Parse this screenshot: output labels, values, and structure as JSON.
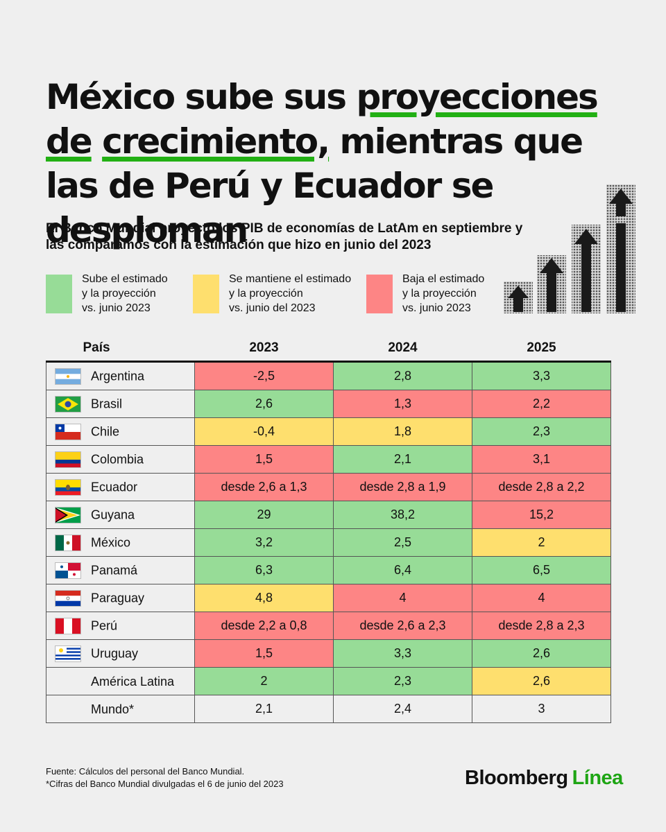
{
  "title": {
    "part1": "México sube sus ",
    "highlight1": "proyecciones de",
    "part2": " ",
    "highlight2": "crecimiento,",
    "part3": " mientras que las de Perú y Ecuador se desploman"
  },
  "subtitle": "El Banco Mundial proyectó los PIB de economías de LatAm en septiembre y las comparamos con la estimación que hizo en junio del 2023",
  "legend": [
    {
      "key": "up",
      "text": "Sube el estimado\ny la proyección\nvs. junio 2023",
      "color": "#97dc97"
    },
    {
      "key": "same",
      "text": "Se mantiene el estimado\ny la proyección\nvs. junio del 2023",
      "color": "#fedf6e"
    },
    {
      "key": "down",
      "text": "Baja el estimado\ny la proyección\nvs. junio 2023",
      "color": "#fd8585"
    }
  ],
  "chart_data": {
    "type": "table",
    "columns": [
      "País",
      "2023",
      "2024",
      "2025"
    ],
    "rows": [
      {
        "country": "Argentina",
        "flag": "argentina-flag",
        "values": [
          "-2,5",
          "2,8",
          "3,3"
        ],
        "status": [
          "down",
          "up",
          "up"
        ]
      },
      {
        "country": "Brasil",
        "flag": "brazil-flag",
        "values": [
          "2,6",
          "1,3",
          "2,2"
        ],
        "status": [
          "up",
          "down",
          "down"
        ]
      },
      {
        "country": "Chile",
        "flag": "chile-flag",
        "values": [
          "-0,4",
          "1,8",
          "2,3"
        ],
        "status": [
          "same",
          "same",
          "up"
        ]
      },
      {
        "country": "Colombia",
        "flag": "colombia-flag",
        "values": [
          "1,5",
          "2,1",
          "3,1"
        ],
        "status": [
          "down",
          "up",
          "down"
        ]
      },
      {
        "country": "Ecuador",
        "flag": "ecuador-flag",
        "values": [
          "desde 2,6 a 1,3",
          "desde 2,8 a 1,9",
          "desde 2,8 a 2,2"
        ],
        "status": [
          "down",
          "down",
          "down"
        ]
      },
      {
        "country": "Guyana",
        "flag": "guyana-flag",
        "values": [
          "29",
          "38,2",
          "15,2"
        ],
        "status": [
          "up",
          "up",
          "down"
        ]
      },
      {
        "country": "México",
        "flag": "mexico-flag",
        "values": [
          "3,2",
          "2,5",
          "2"
        ],
        "status": [
          "up",
          "up",
          "same"
        ]
      },
      {
        "country": "Panamá",
        "flag": "panama-flag",
        "values": [
          "6,3",
          "6,4",
          "6,5"
        ],
        "status": [
          "up",
          "up",
          "up"
        ]
      },
      {
        "country": "Paraguay",
        "flag": "paraguay-flag",
        "values": [
          "4,8",
          "4",
          "4"
        ],
        "status": [
          "same",
          "down",
          "down"
        ]
      },
      {
        "country": "Perú",
        "flag": "peru-flag",
        "values": [
          "desde 2,2 a 0,8",
          "desde 2,6 a 2,3",
          "desde 2,8 a 2,3"
        ],
        "status": [
          "down",
          "down",
          "down"
        ]
      },
      {
        "country": "Uruguay",
        "flag": "uruguay-flag",
        "values": [
          "1,5",
          "3,3",
          "2,6"
        ],
        "status": [
          "down",
          "up",
          "up"
        ]
      },
      {
        "country": "América Latina",
        "flag": "",
        "values": [
          "2",
          "2,3",
          "2,6"
        ],
        "status": [
          "up",
          "up",
          "same"
        ]
      },
      {
        "country": "Mundo*",
        "flag": "",
        "values": [
          "2,1",
          "2,4",
          "3"
        ],
        "status": [
          "na",
          "na",
          "na"
        ]
      }
    ]
  },
  "footnote": "Fuente: Cálculos del personal del Banco Mundial.\n*Cifras del Banco Mundial divulgadas el 6 de junio del 2023",
  "brand": {
    "name": "Bloomberg",
    "accent": "Línea"
  },
  "colors": {
    "accent": "#1ea514",
    "up": "#97dc97",
    "same": "#fedf6e",
    "down": "#fd8585"
  }
}
